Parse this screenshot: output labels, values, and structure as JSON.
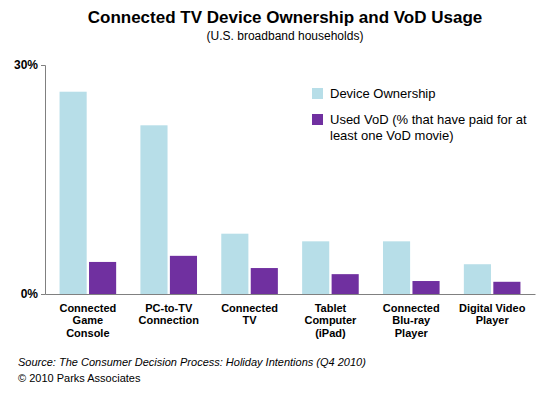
{
  "chart_data": {
    "type": "bar",
    "title": "Connected TV Device Ownership and VoD Usage",
    "subtitle": "(U.S. broadband households)",
    "categories": [
      "Connected Game Console",
      "PC-to-TV Connection",
      "Connected TV",
      "Tablet Computer (iPad)",
      "Connected Blu-ray Player",
      "Digital Video Player"
    ],
    "series": [
      {
        "name": "Device Ownership",
        "color": "#b7dee8",
        "values": [
          26.5,
          22.1,
          7.9,
          6.9,
          6.9,
          3.9
        ]
      },
      {
        "name": "Used VoD (% that have paid for at least one VoD movie)",
        "color": "#7030a0",
        "values": [
          4.2,
          5.0,
          3.4,
          2.6,
          1.7,
          1.6
        ]
      }
    ],
    "ylim": [
      0,
      30
    ],
    "yticks": [
      {
        "value": 0,
        "label": "0%"
      },
      {
        "value": 30,
        "label": "30%"
      }
    ],
    "grid": false,
    "legend": "top-right",
    "annotations": [
      "Source:  The Consumer Decision Process: Holiday Intentions (Q4 2010)",
      "© 2010 Parks Associates"
    ]
  }
}
